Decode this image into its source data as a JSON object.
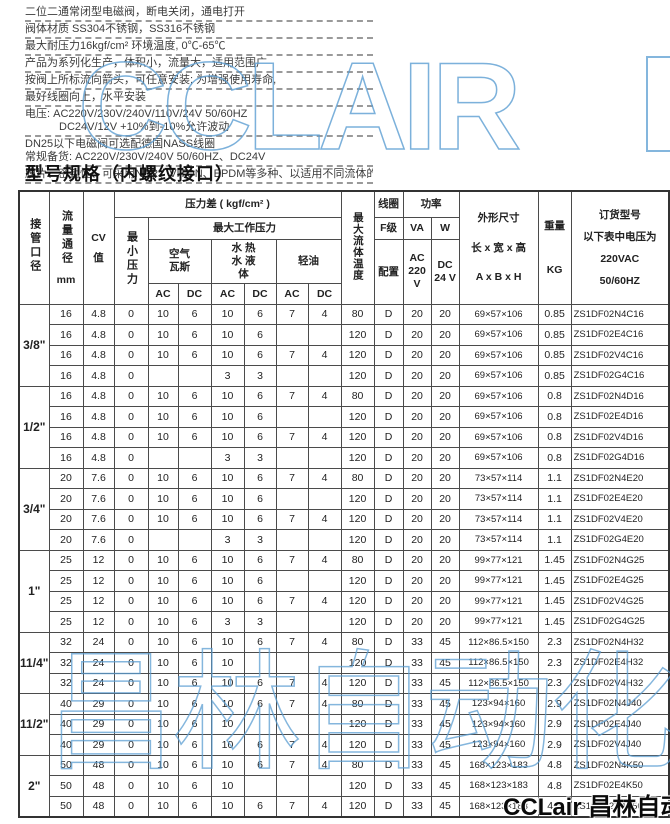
{
  "intro": {
    "lines": [
      "二位二通常闭型电磁阀，断电关闭，通电打开",
      "阀体材质 SS304不锈钢，SS316不锈钢",
      "最大耐压力16kgf/cm²  环境温度, 0℃-65℃",
      "产品为系列化生产，体积小，流量大，适用范围广",
      "按阀上所标流向箭头，可任意安装; 为增强使用寿命,",
      "最好线圈向上，水平安装",
      "电压: AC220V/230V/240V/110V/24V  50/60HZ",
      "DC24V/12V  +10%到-10%允许波动",
      "DN25以下电磁阀可选配德国NASS线圈",
      "常规备货: AC220V/230V/240V 50/60HZ、DC24V",
      "膜片、密封性、可采用NBR、VITON、EPDM等多种、以适用不同流体的开关控制。"
    ]
  },
  "title": "型号规格（内螺纹接口）",
  "watermarks": {
    "top": "CCLAIR",
    "bottom": "昌林自动化",
    "color": "#5b9dd2"
  },
  "logo": {
    "text": "CCLair 昌林自动化"
  },
  "table": {
    "header": {
      "pipe_size": "接管口径",
      "flow_dia": "流量通径",
      "flow_dia_unit": "mm",
      "cv": "CV",
      "cv_unit": "值",
      "pressure_diff": "压力差 ( kgf/cm² )",
      "min_pressure": "最小压力",
      "max_working_pressure": "最大工作压力",
      "air": "空气 瓦斯",
      "water": "水 热水 液体",
      "oil": "轻油",
      "ac": "AC",
      "dc": "DC",
      "max_fluid_temp": "最大流体温度",
      "coil": "线圈",
      "coil_grade": "F级",
      "coil_config": "配置",
      "power": "功率",
      "va": "VA",
      "w": "W",
      "ac220": "AC 220 V",
      "dc24": "DC 24 V",
      "dims": "外形尺寸",
      "dims_lwh": "长 x 宽 x 高",
      "dims_abh": "A x B x H",
      "weight": "重量",
      "weight_unit": "KG",
      "order_code": "订货型号",
      "order_note1": "以下表中电压为",
      "order_note2": "220VAC",
      "order_note3": "50/60HZ"
    },
    "groups": [
      {
        "size": "3/8\"",
        "rows": [
          [
            "16",
            "4.8",
            "0",
            "10",
            "6",
            "10",
            "6",
            "7",
            "4",
            "80",
            "D",
            "20",
            "20",
            "69×57×106",
            "0.85",
            "ZS1DF02N4C16"
          ],
          [
            "16",
            "4.8",
            "0",
            "10",
            "6",
            "10",
            "6",
            "",
            "",
            "120",
            "D",
            "20",
            "20",
            "69×57×106",
            "0.85",
            "ZS1DF02E4C16"
          ],
          [
            "16",
            "4.8",
            "0",
            "10",
            "6",
            "10",
            "6",
            "7",
            "4",
            "120",
            "D",
            "20",
            "20",
            "69×57×106",
            "0.85",
            "ZS1DF02V4C16"
          ],
          [
            "16",
            "4.8",
            "0",
            "",
            "",
            "3",
            "3",
            "",
            "",
            "120",
            "D",
            "20",
            "20",
            "69×57×106",
            "0.85",
            "ZS1DF02G4C16"
          ]
        ]
      },
      {
        "size": "1/2\"",
        "rows": [
          [
            "16",
            "4.8",
            "0",
            "10",
            "6",
            "10",
            "6",
            "7",
            "4",
            "80",
            "D",
            "20",
            "20",
            "69×57×106",
            "0.8",
            "ZS1DF02N4D16"
          ],
          [
            "16",
            "4.8",
            "0",
            "10",
            "6",
            "10",
            "6",
            "",
            "",
            "120",
            "D",
            "20",
            "20",
            "69×57×106",
            "0.8",
            "ZS1DF02E4D16"
          ],
          [
            "16",
            "4.8",
            "0",
            "10",
            "6",
            "10",
            "6",
            "7",
            "4",
            "120",
            "D",
            "20",
            "20",
            "69×57×106",
            "0.8",
            "ZS1DF02V4D16"
          ],
          [
            "16",
            "4.8",
            "0",
            "",
            "",
            "3",
            "3",
            "",
            "",
            "120",
            "D",
            "20",
            "20",
            "69×57×106",
            "0.8",
            "ZS1DF02G4D16"
          ]
        ]
      },
      {
        "size": "3/4\"",
        "rows": [
          [
            "20",
            "7.6",
            "0",
            "10",
            "6",
            "10",
            "6",
            "7",
            "4",
            "80",
            "D",
            "20",
            "20",
            "73×57×114",
            "1.1",
            "ZS1DF02N4E20"
          ],
          [
            "20",
            "7.6",
            "0",
            "10",
            "6",
            "10",
            "6",
            "",
            "",
            "120",
            "D",
            "20",
            "20",
            "73×57×114",
            "1.1",
            "ZS1DF02E4E20"
          ],
          [
            "20",
            "7.6",
            "0",
            "10",
            "6",
            "10",
            "6",
            "7",
            "4",
            "120",
            "D",
            "20",
            "20",
            "73×57×114",
            "1.1",
            "ZS1DF02V4E20"
          ],
          [
            "20",
            "7.6",
            "0",
            "",
            "",
            "3",
            "3",
            "",
            "",
            "120",
            "D",
            "20",
            "20",
            "73×57×114",
            "1.1",
            "ZS1DF02G4E20"
          ]
        ]
      },
      {
        "size": "1\"",
        "rows": [
          [
            "25",
            "12",
            "0",
            "10",
            "6",
            "10",
            "6",
            "7",
            "4",
            "80",
            "D",
            "20",
            "20",
            "99×77×121",
            "1.45",
            "ZS1DF02N4G25"
          ],
          [
            "25",
            "12",
            "0",
            "10",
            "6",
            "10",
            "6",
            "",
            "",
            "120",
            "D",
            "20",
            "20",
            "99×77×121",
            "1.45",
            "ZS1DF02E4G25"
          ],
          [
            "25",
            "12",
            "0",
            "10",
            "6",
            "10",
            "6",
            "7",
            "4",
            "120",
            "D",
            "20",
            "20",
            "99×77×121",
            "1.45",
            "ZS1DF02V4G25"
          ],
          [
            "25",
            "12",
            "0",
            "10",
            "6",
            "3",
            "3",
            "",
            "",
            "120",
            "D",
            "20",
            "20",
            "99×77×121",
            "1.45",
            "ZS1DF02G4G25"
          ]
        ]
      },
      {
        "size": "11/4\"",
        "rows": [
          [
            "32",
            "24",
            "0",
            "10",
            "6",
            "10",
            "6",
            "7",
            "4",
            "80",
            "D",
            "33",
            "45",
            "112×86.5×150",
            "2.3",
            "ZS1DF02N4H32"
          ],
          [
            "32",
            "24",
            "0",
            "10",
            "6",
            "10",
            "",
            "",
            "",
            "120",
            "D",
            "33",
            "45",
            "112×86.5×150",
            "2.3",
            "ZS1DF02E4H32"
          ],
          [
            "32",
            "24",
            "0",
            "10",
            "6",
            "10",
            "6",
            "7",
            "4",
            "120",
            "D",
            "33",
            "45",
            "112×86.5×150",
            "2.3",
            "ZS1DF02V4H32"
          ]
        ]
      },
      {
        "size": "11/2\"",
        "rows": [
          [
            "40",
            "29",
            "0",
            "10",
            "6",
            "10",
            "6",
            "7",
            "4",
            "80",
            "D",
            "33",
            "45",
            "123×94×160",
            "2.9",
            "ZS1DF02N4J40"
          ],
          [
            "40",
            "29",
            "0",
            "10",
            "6",
            "10",
            "",
            "",
            "",
            "120",
            "D",
            "33",
            "45",
            "123×94×160",
            "2.9",
            "ZS1DF02E4J40"
          ],
          [
            "40",
            "29",
            "0",
            "10",
            "6",
            "10",
            "6",
            "7",
            "4",
            "120",
            "D",
            "33",
            "45",
            "123×94×160",
            "2.9",
            "ZS1DF02V4J40"
          ]
        ]
      },
      {
        "size": "2\"",
        "rows": [
          [
            "50",
            "48",
            "0",
            "10",
            "6",
            "10",
            "6",
            "7",
            "4",
            "80",
            "D",
            "33",
            "45",
            "168×123×183",
            "4.8",
            "ZS1DF02N4K50"
          ],
          [
            "50",
            "48",
            "0",
            "10",
            "6",
            "10",
            "",
            "",
            "",
            "120",
            "D",
            "33",
            "45",
            "168×123×183",
            "4.8",
            "ZS1DF02E4K50"
          ],
          [
            "50",
            "48",
            "0",
            "10",
            "6",
            "10",
            "6",
            "7",
            "4",
            "120",
            "D",
            "33",
            "45",
            "168×123×183",
            "4.8",
            "ZS1DF02V4K50"
          ]
        ]
      }
    ]
  }
}
